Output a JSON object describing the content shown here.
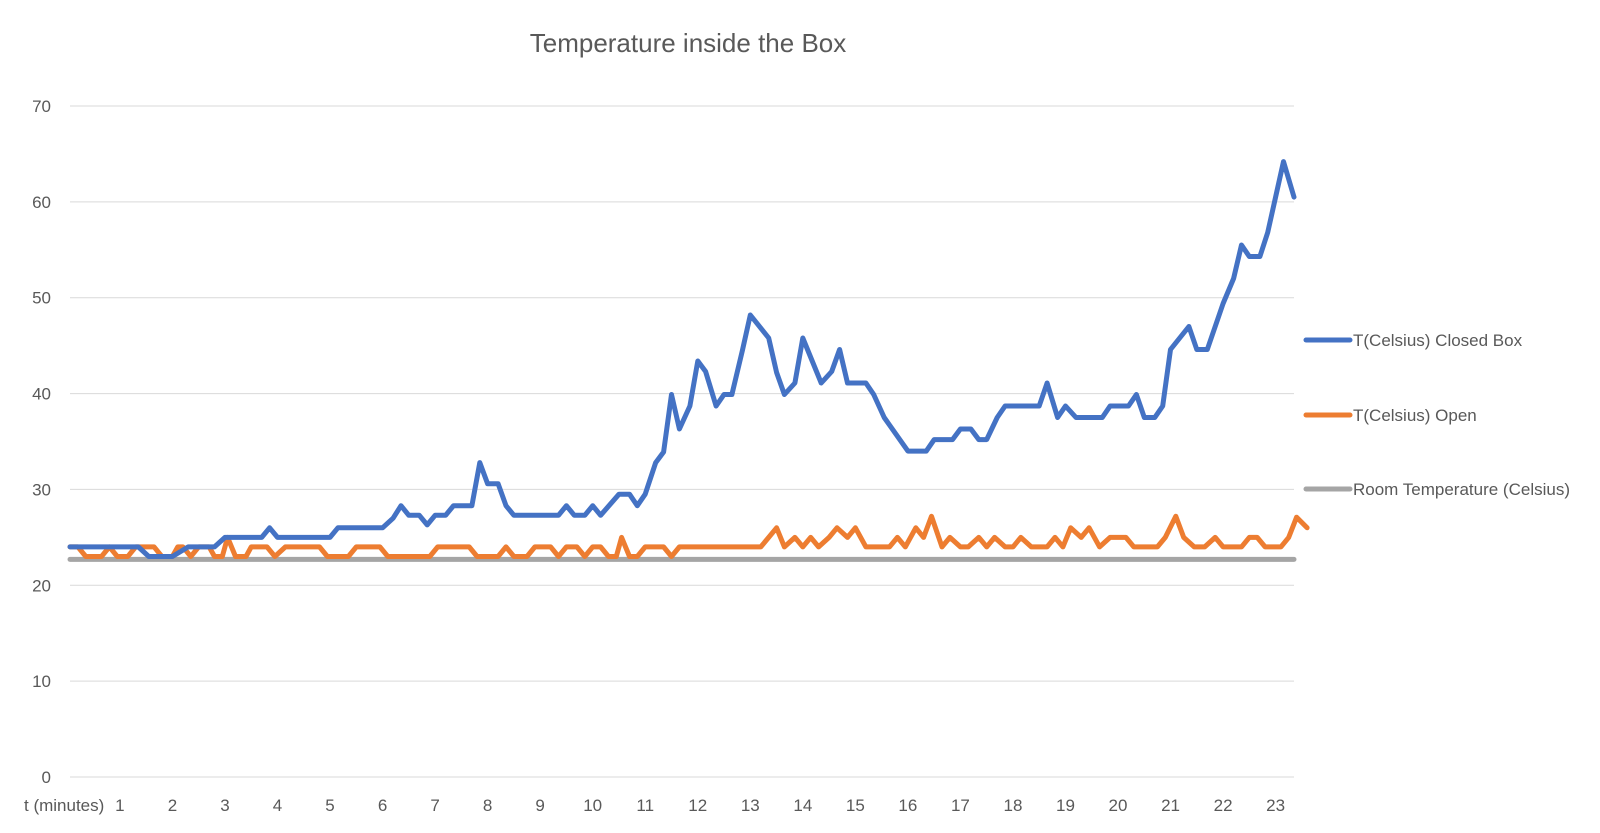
{
  "chart_data": {
    "type": "line",
    "title": "Temperature inside the Box",
    "xlabel": "t (minutes)",
    "ylabel": "",
    "ylim": [
      0,
      70
    ],
    "yticks": [
      "0",
      "10",
      "20",
      "30",
      "40",
      "50",
      "60",
      "70"
    ],
    "xticks": [
      "1",
      "2",
      "3",
      "4",
      "5",
      "6",
      "7",
      "8",
      "9",
      "10",
      "11",
      "12",
      "13",
      "14",
      "15",
      "16",
      "17",
      "18",
      "19",
      "20",
      "21",
      "22",
      "23"
    ],
    "x_range": [
      0.05,
      23.35
    ],
    "grid": true,
    "legend_position": "right",
    "series": [
      {
        "name": "T(Celsius) Closed Box",
        "color": "#4472C4",
        "points": [
          [
            0.05,
            24
          ],
          [
            0.6,
            24
          ],
          [
            1.0,
            24
          ],
          [
            1.35,
            24
          ],
          [
            1.55,
            23
          ],
          [
            2.0,
            23
          ],
          [
            2.3,
            24
          ],
          [
            2.8,
            24
          ],
          [
            3.0,
            25
          ],
          [
            3.3,
            25
          ],
          [
            3.7,
            25
          ],
          [
            3.85,
            26
          ],
          [
            4.0,
            25
          ],
          [
            4.6,
            25
          ],
          [
            5.0,
            25
          ],
          [
            5.15,
            26
          ],
          [
            5.5,
            26
          ],
          [
            6.0,
            26
          ],
          [
            6.2,
            27
          ],
          [
            6.35,
            28.3
          ],
          [
            6.5,
            27.3
          ],
          [
            6.7,
            27.3
          ],
          [
            6.85,
            26.3
          ],
          [
            7.0,
            27.3
          ],
          [
            7.2,
            27.3
          ],
          [
            7.35,
            28.3
          ],
          [
            7.7,
            28.3
          ],
          [
            7.85,
            32.8
          ],
          [
            8.0,
            30.6
          ],
          [
            8.2,
            30.6
          ],
          [
            8.35,
            28.3
          ],
          [
            8.5,
            27.3
          ],
          [
            9.0,
            27.3
          ],
          [
            9.35,
            27.3
          ],
          [
            9.5,
            28.3
          ],
          [
            9.65,
            27.3
          ],
          [
            9.85,
            27.3
          ],
          [
            10.0,
            28.3
          ],
          [
            10.15,
            27.3
          ],
          [
            10.5,
            29.5
          ],
          [
            10.7,
            29.5
          ],
          [
            10.85,
            28.3
          ],
          [
            11.0,
            29.5
          ],
          [
            11.2,
            32.8
          ],
          [
            11.35,
            33.9
          ],
          [
            11.5,
            39.9
          ],
          [
            11.65,
            36.3
          ],
          [
            11.85,
            38.7
          ],
          [
            12.0,
            43.4
          ],
          [
            12.15,
            42.3
          ],
          [
            12.35,
            38.7
          ],
          [
            12.5,
            39.9
          ],
          [
            12.65,
            39.9
          ],
          [
            12.85,
            44.5
          ],
          [
            13.0,
            48.2
          ],
          [
            13.35,
            45.8
          ],
          [
            13.5,
            42.2
          ],
          [
            13.65,
            39.9
          ],
          [
            13.85,
            41.1
          ],
          [
            14.0,
            45.8
          ],
          [
            14.35,
            41.1
          ],
          [
            14.55,
            42.3
          ],
          [
            14.7,
            44.6
          ],
          [
            14.85,
            41.1
          ],
          [
            15.2,
            41.1
          ],
          [
            15.35,
            39.9
          ],
          [
            15.55,
            37.5
          ],
          [
            16.0,
            34
          ],
          [
            16.35,
            34
          ],
          [
            16.5,
            35.2
          ],
          [
            16.85,
            35.2
          ],
          [
            17.0,
            36.3
          ],
          [
            17.2,
            36.3
          ],
          [
            17.35,
            35.2
          ],
          [
            17.5,
            35.2
          ],
          [
            17.7,
            37.5
          ],
          [
            17.85,
            38.7
          ],
          [
            18.5,
            38.7
          ],
          [
            18.65,
            41.1
          ],
          [
            18.85,
            37.5
          ],
          [
            19.0,
            38.7
          ],
          [
            19.2,
            37.5
          ],
          [
            19.7,
            37.5
          ],
          [
            19.85,
            38.7
          ],
          [
            20.2,
            38.7
          ],
          [
            20.35,
            39.9
          ],
          [
            20.5,
            37.5
          ],
          [
            20.7,
            37.5
          ],
          [
            20.85,
            38.7
          ],
          [
            21.0,
            44.6
          ],
          [
            21.35,
            47
          ],
          [
            21.5,
            44.6
          ],
          [
            21.7,
            44.6
          ],
          [
            22.0,
            49.4
          ],
          [
            22.2,
            52
          ],
          [
            22.35,
            55.5
          ],
          [
            22.5,
            54.3
          ],
          [
            22.7,
            54.3
          ],
          [
            22.85,
            56.8
          ],
          [
            23.0,
            60.5
          ],
          [
            23.15,
            64.2
          ],
          [
            23.35,
            60.5
          ]
        ]
      },
      {
        "name": "T(Celsius) Open",
        "color": "#ED7D31",
        "points": [
          [
            0.05,
            24
          ],
          [
            0.2,
            24
          ],
          [
            0.35,
            23
          ],
          [
            0.65,
            23
          ],
          [
            0.8,
            24
          ],
          [
            0.95,
            23
          ],
          [
            1.15,
            23
          ],
          [
            1.3,
            24
          ],
          [
            1.65,
            24
          ],
          [
            1.8,
            23
          ],
          [
            2.0,
            23
          ],
          [
            2.1,
            24
          ],
          [
            2.2,
            24
          ],
          [
            2.35,
            23
          ],
          [
            2.5,
            24
          ],
          [
            2.7,
            24
          ],
          [
            2.8,
            23
          ],
          [
            2.95,
            23
          ],
          [
            3.05,
            25
          ],
          [
            3.2,
            23
          ],
          [
            3.4,
            23
          ],
          [
            3.5,
            24
          ],
          [
            3.8,
            24
          ],
          [
            3.95,
            23
          ],
          [
            4.15,
            24
          ],
          [
            4.8,
            24
          ],
          [
            4.95,
            23
          ],
          [
            5.35,
            23
          ],
          [
            5.5,
            24
          ],
          [
            5.95,
            24
          ],
          [
            6.1,
            23
          ],
          [
            6.9,
            23
          ],
          [
            7.05,
            24
          ],
          [
            7.65,
            24
          ],
          [
            7.8,
            23
          ],
          [
            8.2,
            23
          ],
          [
            8.35,
            24
          ],
          [
            8.5,
            23
          ],
          [
            8.75,
            23
          ],
          [
            8.9,
            24
          ],
          [
            9.2,
            24
          ],
          [
            9.35,
            23
          ],
          [
            9.5,
            24
          ],
          [
            9.7,
            24
          ],
          [
            9.85,
            23
          ],
          [
            10.0,
            24
          ],
          [
            10.15,
            24
          ],
          [
            10.3,
            23
          ],
          [
            10.45,
            23
          ],
          [
            10.55,
            25
          ],
          [
            10.7,
            23
          ],
          [
            10.85,
            23
          ],
          [
            11.0,
            24
          ],
          [
            11.35,
            24
          ],
          [
            11.5,
            23
          ],
          [
            11.65,
            24
          ],
          [
            13.2,
            24
          ],
          [
            13.35,
            25
          ],
          [
            13.5,
            26
          ],
          [
            13.65,
            24
          ],
          [
            13.85,
            25
          ],
          [
            14.0,
            24
          ],
          [
            14.15,
            25
          ],
          [
            14.3,
            24
          ],
          [
            14.5,
            25
          ],
          [
            14.65,
            26
          ],
          [
            14.85,
            25
          ],
          [
            15.0,
            26
          ],
          [
            15.2,
            24
          ],
          [
            15.5,
            24
          ],
          [
            15.65,
            24
          ],
          [
            15.8,
            25
          ],
          [
            15.95,
            24
          ],
          [
            16.15,
            26
          ],
          [
            16.3,
            25
          ],
          [
            16.45,
            27.2
          ],
          [
            16.65,
            24
          ],
          [
            16.8,
            25
          ],
          [
            17.0,
            24
          ],
          [
            17.15,
            24
          ],
          [
            17.35,
            25
          ],
          [
            17.5,
            24
          ],
          [
            17.65,
            25
          ],
          [
            17.85,
            24
          ],
          [
            18.0,
            24
          ],
          [
            18.15,
            25
          ],
          [
            18.35,
            24
          ],
          [
            18.65,
            24
          ],
          [
            18.8,
            25
          ],
          [
            18.95,
            24
          ],
          [
            19.1,
            26
          ],
          [
            19.3,
            25
          ],
          [
            19.45,
            26
          ],
          [
            19.65,
            24
          ],
          [
            19.85,
            25
          ],
          [
            20.15,
            25
          ],
          [
            20.3,
            24
          ],
          [
            20.75,
            24
          ],
          [
            20.9,
            25
          ],
          [
            21.1,
            27.2
          ],
          [
            21.25,
            25
          ],
          [
            21.45,
            24
          ],
          [
            21.65,
            24
          ],
          [
            21.85,
            25
          ],
          [
            22.0,
            24
          ],
          [
            22.35,
            24
          ],
          [
            22.5,
            25
          ],
          [
            22.65,
            25
          ],
          [
            22.8,
            24
          ],
          [
            23.1,
            24
          ],
          [
            23.25,
            25
          ],
          [
            23.4,
            27.1
          ],
          [
            23.6,
            26
          ]
        ]
      },
      {
        "name": "Room Temperature (Celsius)",
        "color": "#A5A5A5",
        "points": [
          [
            0.05,
            22.7
          ],
          [
            23.35,
            22.7
          ]
        ]
      }
    ]
  }
}
